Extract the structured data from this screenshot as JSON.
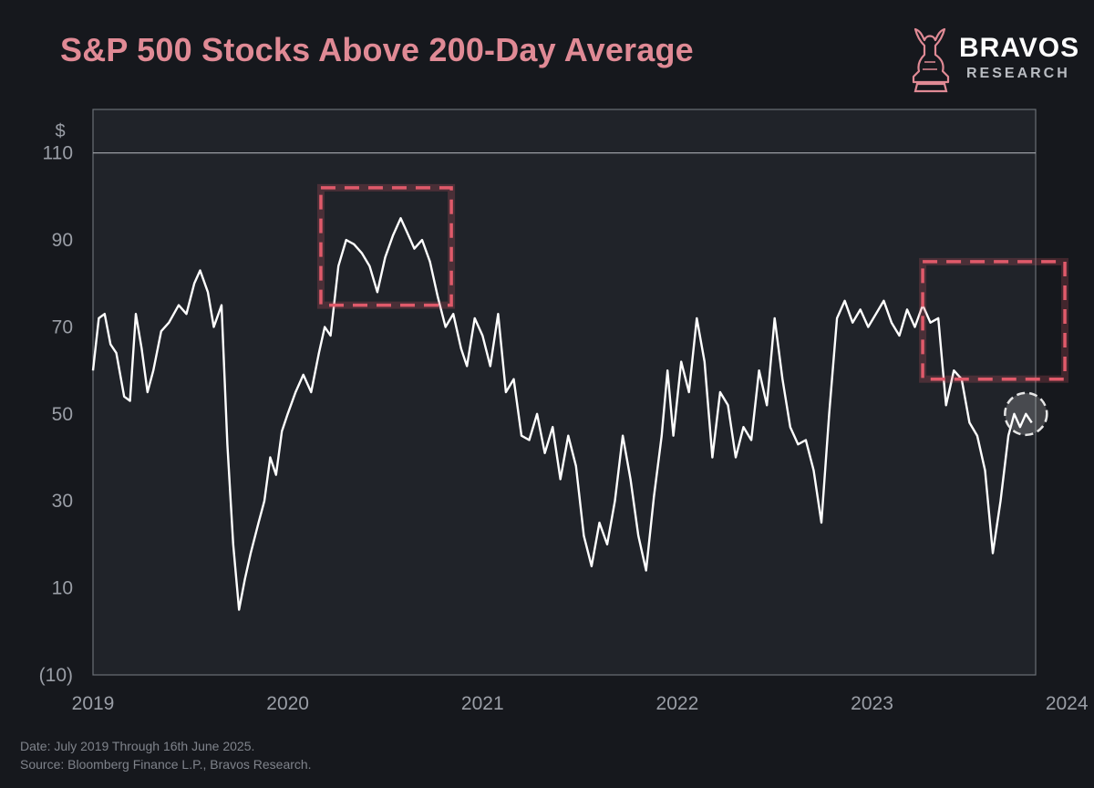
{
  "title": "S&P 500 Stocks Above 200-Day Average",
  "brand": {
    "name": "BRAVOS",
    "sub": "RESEARCH",
    "logo_icon": "bull-knight-icon"
  },
  "footer": {
    "line1": "Date: July 2019 Through 16th June 2025.",
    "line2": "Source: Bloomberg Finance L.P., Bravos Research."
  },
  "colors": {
    "background": "#16181d",
    "plot_bg": "#202329",
    "line": "#ffffff",
    "title": "#e08a95",
    "highlight": "#e05a6a",
    "axis_text": "#9a9ea6"
  },
  "chart_data": {
    "type": "line",
    "title": "S&P 500 Stocks Above 200-Day Average",
    "ylabel": "$",
    "ylim": [
      -10,
      120
    ],
    "yticks": [
      110,
      90,
      70,
      50,
      30,
      10,
      -10
    ],
    "ytick_labels": [
      "110",
      "90",
      "70",
      "50",
      "30",
      "10",
      "(10)"
    ],
    "xlim": [
      2019.0,
      2023.84
    ],
    "xticks": [
      2019,
      2020,
      2021,
      2022,
      2023,
      2024
    ],
    "xtick_labels": [
      "2019",
      "2020",
      "2021",
      "2022",
      "2023",
      "2024"
    ],
    "grid": false,
    "reference_line": 110,
    "series": [
      {
        "points": [
          [
            2019.0,
            60
          ],
          [
            2019.03,
            72
          ],
          [
            2019.06,
            73
          ],
          [
            2019.09,
            66
          ],
          [
            2019.12,
            64
          ],
          [
            2019.16,
            54
          ],
          [
            2019.19,
            53
          ],
          [
            2019.22,
            73
          ],
          [
            2019.25,
            65
          ],
          [
            2019.28,
            55
          ],
          [
            2019.31,
            60
          ],
          [
            2019.35,
            69
          ],
          [
            2019.39,
            71
          ],
          [
            2019.44,
            75
          ],
          [
            2019.48,
            73
          ],
          [
            2019.52,
            80
          ],
          [
            2019.55,
            83
          ],
          [
            2019.59,
            78
          ],
          [
            2019.62,
            70
          ],
          [
            2019.66,
            75
          ],
          [
            2019.69,
            43
          ],
          [
            2019.72,
            20
          ],
          [
            2019.75,
            5
          ],
          [
            2019.78,
            12
          ],
          [
            2019.81,
            18
          ],
          [
            2019.85,
            25
          ],
          [
            2019.88,
            30
          ],
          [
            2019.91,
            40
          ],
          [
            2019.94,
            36
          ],
          [
            2019.97,
            46
          ],
          [
            2020.0,
            50
          ],
          [
            2020.04,
            55
          ],
          [
            2020.08,
            59
          ],
          [
            2020.12,
            55
          ],
          [
            2020.16,
            64
          ],
          [
            2020.19,
            70
          ],
          [
            2020.22,
            68
          ],
          [
            2020.26,
            84
          ],
          [
            2020.3,
            90
          ],
          [
            2020.34,
            89
          ],
          [
            2020.38,
            87
          ],
          [
            2020.42,
            84
          ],
          [
            2020.46,
            78
          ],
          [
            2020.5,
            86
          ],
          [
            2020.54,
            91
          ],
          [
            2020.58,
            95
          ],
          [
            2020.61,
            92
          ],
          [
            2020.65,
            88
          ],
          [
            2020.69,
            90
          ],
          [
            2020.73,
            85
          ],
          [
            2020.77,
            77
          ],
          [
            2020.81,
            70
          ],
          [
            2020.85,
            73
          ],
          [
            2020.89,
            65
          ],
          [
            2020.92,
            61
          ],
          [
            2020.96,
            72
          ],
          [
            2021.0,
            68
          ],
          [
            2021.04,
            61
          ],
          [
            2021.08,
            73
          ],
          [
            2021.12,
            55
          ],
          [
            2021.16,
            58
          ],
          [
            2021.2,
            45
          ],
          [
            2021.24,
            44
          ],
          [
            2021.28,
            50
          ],
          [
            2021.32,
            41
          ],
          [
            2021.36,
            47
          ],
          [
            2021.4,
            35
          ],
          [
            2021.44,
            45
          ],
          [
            2021.48,
            38
          ],
          [
            2021.52,
            22
          ],
          [
            2021.56,
            15
          ],
          [
            2021.6,
            25
          ],
          [
            2021.64,
            20
          ],
          [
            2021.68,
            30
          ],
          [
            2021.72,
            45
          ],
          [
            2021.76,
            35
          ],
          [
            2021.8,
            22
          ],
          [
            2021.84,
            14
          ],
          [
            2021.88,
            31
          ],
          [
            2021.92,
            45
          ],
          [
            2021.95,
            60
          ],
          [
            2021.98,
            45
          ],
          [
            2022.02,
            62
          ],
          [
            2022.06,
            55
          ],
          [
            2022.1,
            72
          ],
          [
            2022.14,
            62
          ],
          [
            2022.18,
            40
          ],
          [
            2022.22,
            55
          ],
          [
            2022.26,
            52
          ],
          [
            2022.3,
            40
          ],
          [
            2022.34,
            47
          ],
          [
            2022.38,
            44
          ],
          [
            2022.42,
            60
          ],
          [
            2022.46,
            52
          ],
          [
            2022.5,
            72
          ],
          [
            2022.54,
            58
          ],
          [
            2022.58,
            47
          ],
          [
            2022.62,
            43
          ],
          [
            2022.66,
            44
          ],
          [
            2022.7,
            37
          ],
          [
            2022.74,
            25
          ],
          [
            2022.78,
            50
          ],
          [
            2022.82,
            72
          ],
          [
            2022.86,
            76
          ],
          [
            2022.9,
            71
          ],
          [
            2022.94,
            74
          ],
          [
            2022.98,
            70
          ],
          [
            2023.02,
            73
          ],
          [
            2023.06,
            76
          ],
          [
            2023.1,
            71
          ],
          [
            2023.14,
            68
          ],
          [
            2023.18,
            74
          ],
          [
            2023.22,
            70
          ],
          [
            2023.26,
            75
          ],
          [
            2023.3,
            71
          ],
          [
            2023.34,
            72
          ],
          [
            2023.38,
            52
          ],
          [
            2023.42,
            60
          ],
          [
            2023.46,
            58
          ],
          [
            2023.5,
            48
          ],
          [
            2023.54,
            45
          ],
          [
            2023.58,
            37
          ],
          [
            2023.62,
            18
          ],
          [
            2023.66,
            30
          ],
          [
            2023.7,
            45
          ],
          [
            2023.73,
            50
          ],
          [
            2023.76,
            47
          ],
          [
            2023.79,
            50
          ],
          [
            2023.82,
            48
          ]
        ]
      }
    ],
    "annotations": [
      {
        "shape": "dashed-rectangle",
        "x": [
          2020.17,
          2020.84
        ],
        "y": [
          75,
          102
        ]
      },
      {
        "shape": "dashed-rectangle",
        "x": [
          2023.26,
          2023.99
        ],
        "y": [
          58,
          85
        ]
      },
      {
        "shape": "dashed-circle",
        "x": 2023.79,
        "y": 50
      }
    ]
  }
}
